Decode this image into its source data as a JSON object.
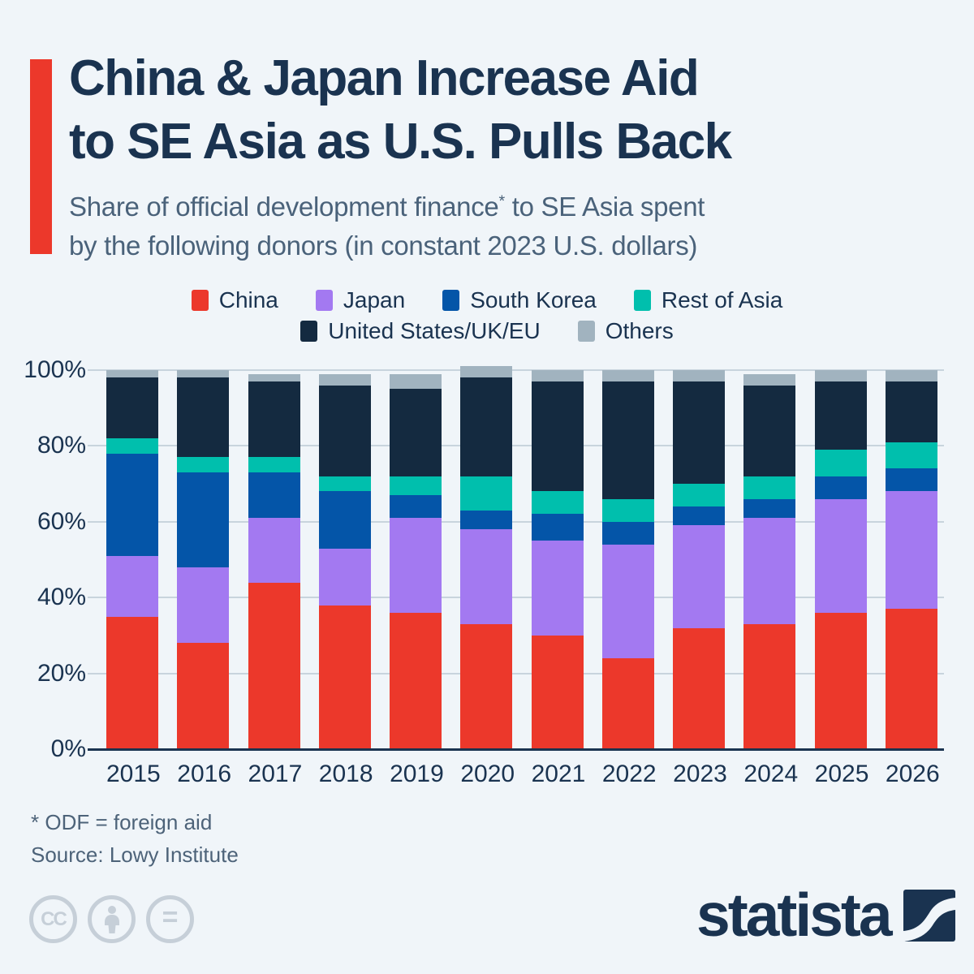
{
  "header": {
    "accent_color": "#ec382b",
    "title_line1": "China & Japan Increase Aid",
    "title_line2": "to SE Asia as U.S. Pulls Back",
    "subtitle_pre": "Share of official development finance",
    "subtitle_sup": "*",
    "subtitle_post": " to SE Asia spent",
    "subtitle_line2": "by the following donors (in constant 2023 U.S. dollars)"
  },
  "chart_data": {
    "type": "bar",
    "stacked": true,
    "unit": "%",
    "categories": [
      "2015",
      "2016",
      "2017",
      "2018",
      "2019",
      "2020",
      "2021",
      "2022",
      "2023",
      "2024",
      "2025",
      "2026"
    ],
    "series": [
      {
        "name": "China",
        "color": "#ec382b",
        "values": [
          35,
          28,
          44,
          38,
          36,
          33,
          30,
          24,
          32,
          33,
          36,
          37
        ]
      },
      {
        "name": "Japan",
        "color": "#a379f1",
        "values": [
          16,
          20,
          17,
          15,
          25,
          25,
          25,
          30,
          27,
          28,
          30,
          31
        ]
      },
      {
        "name": "South Korea",
        "color": "#0455a8",
        "values": [
          27,
          25,
          12,
          15,
          6,
          5,
          7,
          6,
          5,
          5,
          6,
          6
        ]
      },
      {
        "name": "Rest of Asia",
        "color": "#00bfad",
        "values": [
          4,
          4,
          4,
          4,
          5,
          9,
          6,
          6,
          6,
          6,
          7,
          7
        ]
      },
      {
        "name": "United States/UK/EU",
        "color": "#142a40",
        "values": [
          16,
          21,
          20,
          24,
          23,
          26,
          29,
          31,
          27,
          24,
          18,
          16
        ]
      },
      {
        "name": "Others",
        "color": "#a1b3bf",
        "values": [
          2,
          2,
          2,
          3,
          4,
          3,
          3,
          3,
          3,
          3,
          3,
          3
        ]
      }
    ],
    "legend_rows": [
      [
        "China",
        "Japan",
        "South Korea",
        "Rest of Asia"
      ],
      [
        "United States/UK/EU",
        "Others"
      ]
    ],
    "legend_position": "top",
    "yticks": [
      "0%",
      "20%",
      "40%",
      "60%",
      "80%",
      "100%"
    ],
    "ylim": [
      0,
      100
    ],
    "grid": true,
    "xlabel": "",
    "ylabel": ""
  },
  "footer": {
    "footnote": "* ODF = foreign aid",
    "source": "Source: Lowy Institute",
    "license_icons": [
      "cc-icon",
      "attribution-person-icon",
      "equals-icon"
    ],
    "cc_label": "CC",
    "equals_label": "=",
    "brand": "statista"
  }
}
